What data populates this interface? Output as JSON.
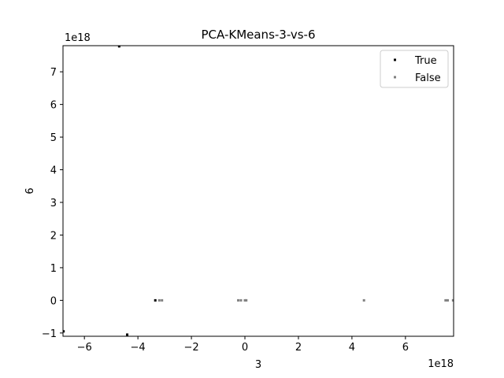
{
  "chart_data": {
    "type": "scatter",
    "title": "PCA-KMeans-3-vs-6",
    "xlabel": "3",
    "ylabel": "6",
    "x_offset_label": "1e18",
    "y_offset_label": "1e18",
    "xlim": [
      -6.8,
      7.8
    ],
    "ylim": [
      -1.1,
      7.8
    ],
    "x_ticks": [
      -6,
      -4,
      -2,
      0,
      2,
      4,
      6
    ],
    "x_tick_labels": [
      "−6",
      "−4",
      "−2",
      "0",
      "2",
      "4",
      "6"
    ],
    "y_ticks": [
      -1,
      0,
      1,
      2,
      3,
      4,
      5,
      6,
      7
    ],
    "y_tick_labels": [
      "−1",
      "0",
      "1",
      "2",
      "3",
      "4",
      "5",
      "6",
      "7"
    ],
    "grid": false,
    "legend_position": "top-right",
    "series": [
      {
        "name": "True",
        "color": "#000000",
        "points": [
          [
            -4.7,
            7.78
          ],
          [
            -3.35,
            0.0
          ],
          [
            -6.78,
            -0.95
          ],
          [
            -4.4,
            -1.05
          ]
        ]
      },
      {
        "name": "False",
        "color": "#808080",
        "points": [
          [
            -3.2,
            0.0
          ],
          [
            -3.1,
            0.0
          ],
          [
            -0.25,
            0.0
          ],
          [
            -0.15,
            0.0
          ],
          [
            0.0,
            0.0
          ],
          [
            0.05,
            0.0
          ],
          [
            4.45,
            0.0
          ],
          [
            7.5,
            0.0
          ],
          [
            7.58,
            0.0
          ],
          [
            7.78,
            0.0
          ]
        ]
      }
    ]
  }
}
